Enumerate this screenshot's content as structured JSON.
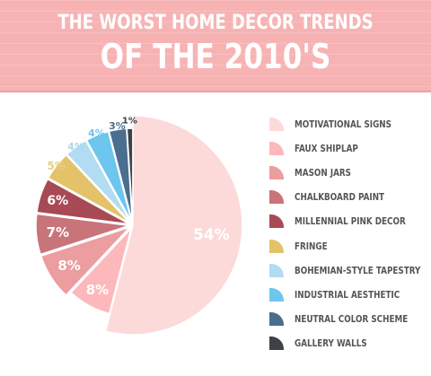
{
  "header": {
    "title_line1": "THE WORST HOME DECOR TRENDS",
    "title_line2": "OF THE 2010'S"
  },
  "chart_data": {
    "type": "pie",
    "categories": [
      "MOTIVATIONAL SIGNS",
      "FAUX SHIPLAP",
      "MASON JARS",
      "CHALKBOARD PAINT",
      "MILLENNIAL PINK DECOR",
      "FRINGE",
      "BOHEMIAN-STYLE TAPESTRY",
      "INDUSTRIAL AESTHETIC",
      "NEUTRAL COLOR SCHEME",
      "GALLERY WALLS"
    ],
    "values": [
      54,
      8,
      8,
      7,
      6,
      5,
      4,
      4,
      3,
      1
    ],
    "labels": [
      "54%",
      "8%",
      "8%",
      "7%",
      "6%",
      "5%",
      "4%",
      "4%",
      "3%",
      "1%"
    ],
    "colors": [
      "#fcdada",
      "#fdb8bb",
      "#ec9da0",
      "#c87479",
      "#a84a55",
      "#e3c26a",
      "#b2dcf2",
      "#6cc6ee",
      "#4a6e8e",
      "#3e4146"
    ],
    "label_colors": [
      "#ffffff",
      "#ffffff",
      "#ffffff",
      "#ffffff",
      "#ffffff",
      "#e8cf84",
      "#a9d8ef",
      "#6cc6ee",
      "#4a6e8e",
      "#3e4146"
    ],
    "legend_placement": "right"
  }
}
